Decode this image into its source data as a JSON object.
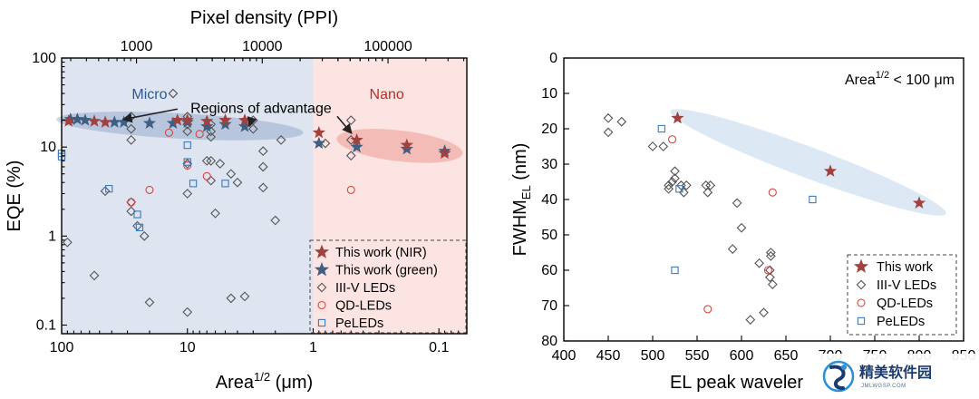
{
  "chart_data": [
    {
      "type": "scatter",
      "xlabel": "Area",
      "xlabel_sup": "1/2",
      "xlabel_unit": " (μm)",
      "ylabel": "EQE (%)",
      "x2label": "Pixel density (PPI)",
      "xscale": "log",
      "yscale": "log",
      "x_reversed": true,
      "xlim": [
        100,
        0.06
      ],
      "ylim": [
        0.08,
        100
      ],
      "x_ticks": [
        {
          "v": 100,
          "label": "100"
        },
        {
          "v": 10,
          "label": "10"
        },
        {
          "v": 1,
          "label": "1"
        },
        {
          "v": 0.1,
          "label": "0.1"
        }
      ],
      "y_ticks": [
        {
          "v": 0.1,
          "label": "0.1"
        },
        {
          "v": 1,
          "label": "1"
        },
        {
          "v": 10,
          "label": "10"
        },
        {
          "v": 100,
          "label": "100"
        }
      ],
      "x2_ticks": [
        {
          "area": 25.4,
          "label": "1000"
        },
        {
          "area": 2.54,
          "label": "10000"
        },
        {
          "area": 0.254,
          "label": "100000"
        }
      ],
      "regions": [
        {
          "label": "Micro",
          "from": 100,
          "to": 1,
          "fill": "#dfe5f0",
          "text_color": "#2b5a93",
          "label_x": 20,
          "label_y": 40
        },
        {
          "label": "Nano",
          "from": 1,
          "to": 0.06,
          "fill": "#fbe4e2",
          "text_color": "#b5302a",
          "label_x": 0.26,
          "label_y": 40
        }
      ],
      "annotation": {
        "text": "Regions of advantage",
        "x": 2.6,
        "y": 28
      },
      "legend": {
        "position": "bottom-right",
        "entries": [
          {
            "label": "This work (NIR)",
            "series": "nir"
          },
          {
            "label": "This work (green)",
            "series": "green"
          },
          {
            "label": "III-V LEDs",
            "series": "iiiv"
          },
          {
            "label": "QD-LEDs",
            "series": "qd"
          },
          {
            "label": "PeLEDs",
            "series": "pe"
          }
        ]
      },
      "series": [
        {
          "key": "nir",
          "marker": "star",
          "color": "#a0413e",
          "points": [
            [
              88,
              19.5
            ],
            [
              55,
              19.5
            ],
            [
              45,
              19
            ],
            [
              12,
              20
            ],
            [
              10,
              20
            ],
            [
              7,
              19.5
            ],
            [
              5,
              20
            ],
            [
              3.5,
              20
            ],
            [
              0.9,
              14.5
            ],
            [
              0.45,
              12
            ],
            [
              0.18,
              10.5
            ],
            [
              0.09,
              8.5
            ]
          ]
        },
        {
          "key": "green",
          "marker": "star",
          "color": "#3e5f82",
          "points": [
            [
              85,
              20.5
            ],
            [
              75,
              20.5
            ],
            [
              65,
              20
            ],
            [
              38,
              19
            ],
            [
              32,
              19
            ],
            [
              20,
              18.5
            ],
            [
              13,
              18.5
            ],
            [
              10,
              19
            ],
            [
              7,
              17
            ],
            [
              5,
              18
            ],
            [
              3.5,
              17
            ],
            [
              0.9,
              11
            ],
            [
              0.45,
              10
            ],
            [
              0.18,
              9.5
            ],
            [
              0.09,
              9
            ]
          ]
        },
        {
          "key": "iiiv",
          "marker": "diamond",
          "color": "#555555",
          "points": [
            [
              90,
              0.85
            ],
            [
              55,
              0.36
            ],
            [
              45,
              3.2
            ],
            [
              28,
              22
            ],
            [
              28,
              16
            ],
            [
              28,
              12
            ],
            [
              28,
              2.4
            ],
            [
              28,
              1.9
            ],
            [
              25,
              1.3
            ],
            [
              22,
              1.0
            ],
            [
              20,
              0.18
            ],
            [
              13,
              40
            ],
            [
              10,
              22
            ],
            [
              10,
              18
            ],
            [
              10,
              15
            ],
            [
              10,
              6.5
            ],
            [
              10,
              3.0
            ],
            [
              10,
              0.14
            ],
            [
              7,
              7
            ],
            [
              6.5,
              18
            ],
            [
              6.5,
              15
            ],
            [
              6.5,
              13
            ],
            [
              6.5,
              7
            ],
            [
              6.5,
              4.2
            ],
            [
              6,
              1.8
            ],
            [
              5.5,
              6.5
            ],
            [
              4.5,
              5
            ],
            [
              4.5,
              0.2
            ],
            [
              4,
              4
            ],
            [
              3.5,
              0.21
            ],
            [
              3,
              20
            ],
            [
              3,
              16
            ],
            [
              2.5,
              9
            ],
            [
              2.5,
              6
            ],
            [
              2.5,
              3.5
            ],
            [
              2,
              1.5
            ],
            [
              1.8,
              12
            ],
            [
              0.8,
              11
            ],
            [
              0.5,
              20
            ],
            [
              0.5,
              12
            ],
            [
              0.5,
              8
            ]
          ]
        },
        {
          "key": "qd",
          "marker": "circle",
          "color": "#d8443e",
          "points": [
            [
              28,
              2.4
            ],
            [
              20,
              3.3
            ],
            [
              14,
              14.5
            ],
            [
              10,
              6.2
            ],
            [
              8,
              14
            ],
            [
              7,
              4.7
            ],
            [
              0.5,
              3.3
            ]
          ]
        },
        {
          "key": "pe",
          "marker": "square",
          "color": "#3a78c0",
          "points": [
            [
              100,
              8.5
            ],
            [
              100,
              7.8
            ],
            [
              42,
              3.4
            ],
            [
              25,
              1.75
            ],
            [
              24,
              1.25
            ],
            [
              10,
              10.5
            ],
            [
              10,
              6.8
            ],
            [
              9,
              3.9
            ],
            [
              5,
              3.9
            ]
          ]
        }
      ]
    },
    {
      "type": "scatter",
      "xlabel": "EL peak waveler",
      "ylabel": "FWHM",
      "ylabel_sub": "EL",
      "ylabel_unit": " (nm)",
      "xlim": [
        400,
        850
      ],
      "ylim": [
        0,
        80
      ],
      "y_reversed": true,
      "x_ticks": [
        400,
        450,
        500,
        550,
        600,
        650,
        700,
        750,
        800,
        850
      ],
      "y_ticks": [
        0,
        10,
        20,
        30,
        40,
        50,
        60,
        70,
        80
      ],
      "annotation_parts": [
        "Area",
        "1/2",
        " < 100 μm"
      ],
      "highlight_band": {
        "from": [
          520,
          15
        ],
        "to": [
          830,
          44
        ],
        "color": "#dde8f5"
      },
      "legend": {
        "position": "bottom-right",
        "entries": [
          {
            "label": "This work",
            "series": "tw"
          },
          {
            "label": "III-V LEDs",
            "series": "iiiv"
          },
          {
            "label": "QD-LEDs",
            "series": "qd"
          },
          {
            "label": "PeLEDs",
            "series": "pe"
          }
        ]
      },
      "series": [
        {
          "key": "tw",
          "marker": "star",
          "color": "#a0413e",
          "points": [
            [
              528,
              17
            ],
            [
              700,
              32
            ],
            [
              800,
              41
            ]
          ]
        },
        {
          "key": "iiiv",
          "marker": "diamond",
          "color": "#555555",
          "points": [
            [
              450,
              17
            ],
            [
              450,
              21
            ],
            [
              465,
              18
            ],
            [
              500,
              25
            ],
            [
              512,
              25
            ],
            [
              518,
              36
            ],
            [
              518,
              37
            ],
            [
              522,
              35
            ],
            [
              525,
              32
            ],
            [
              525,
              34
            ],
            [
              532,
              36
            ],
            [
              535,
              38
            ],
            [
              538,
              36
            ],
            [
              560,
              36
            ],
            [
              562,
              38
            ],
            [
              565,
              36
            ],
            [
              590,
              54
            ],
            [
              595,
              41
            ],
            [
              600,
              48
            ],
            [
              610,
              74
            ],
            [
              620,
              58
            ],
            [
              625,
              72
            ],
            [
              632,
              62
            ],
            [
              633,
              55
            ],
            [
              633,
              56
            ],
            [
              635,
              64
            ],
            [
              632,
              60
            ]
          ]
        },
        {
          "key": "qd",
          "marker": "circle",
          "color": "#d8443e",
          "points": [
            [
              522,
              23
            ],
            [
              562,
              71
            ],
            [
              630,
              60
            ],
            [
              635,
              38
            ]
          ]
        },
        {
          "key": "pe",
          "marker": "square",
          "color": "#3a78c0",
          "points": [
            [
              510,
              20
            ],
            [
              530,
              37
            ],
            [
              525,
              60
            ],
            [
              680,
              40
            ]
          ]
        }
      ]
    }
  ],
  "watermark": {
    "text": "精美软件园",
    "sub": "JMLWGSP.COM"
  }
}
